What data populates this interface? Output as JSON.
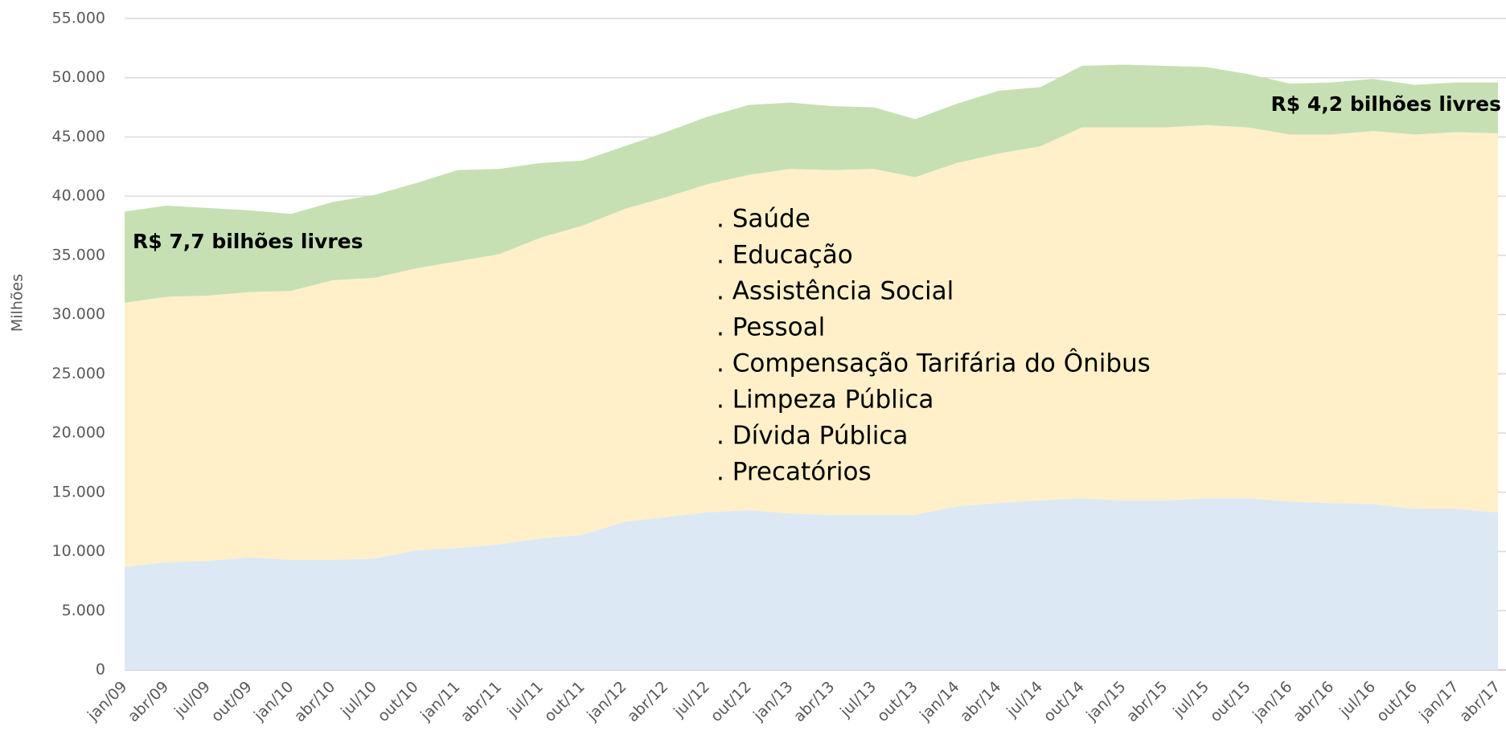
{
  "chart_data": {
    "type": "stacked_area",
    "ylabel": "Milhões",
    "categories": [
      "jan/09",
      "abr/09",
      "jul/09",
      "out/09",
      "jan/10",
      "abr/10",
      "jul/10",
      "out/10",
      "jan/11",
      "abr/11",
      "jul/11",
      "out/11",
      "jan/12",
      "abr/12",
      "jul/12",
      "out/12",
      "jan/13",
      "abr/13",
      "jul/13",
      "out/13",
      "jan/14",
      "abr/14",
      "jul/14",
      "out/14",
      "jan/15",
      "abr/15",
      "jul/15",
      "out/15",
      "jan/16",
      "abr/16",
      "jul/16",
      "out/16",
      "jan/17",
      "abr/17"
    ],
    "series": [
      {
        "color": "#dde8f5",
        "values": [
          8700,
          9100,
          9200,
          9500,
          9300,
          9300,
          9400,
          10100,
          10300,
          10600,
          11100,
          11400,
          12500,
          12900,
          13300,
          13500,
          13200,
          13100,
          13100,
          13100,
          13800,
          14100,
          14300,
          14500,
          14300,
          14300,
          14500,
          14500,
          14200,
          14100,
          14000,
          13600,
          13600,
          13300
        ]
      },
      {
        "color": "#fff0c9",
        "values": [
          22300,
          22400,
          22400,
          22400,
          22700,
          23600,
          23700,
          23800,
          24200,
          24500,
          25400,
          26100,
          26400,
          27000,
          27700,
          28300,
          29100,
          29100,
          29200,
          28500,
          29000,
          29500,
          29900,
          31300,
          31500,
          31500,
          31500,
          31300,
          31000,
          31100,
          31500,
          31600,
          31800,
          32000
        ]
      },
      {
        "color": "#c6e0b4",
        "values": [
          7700,
          7700,
          7400,
          6900,
          6500,
          6600,
          7000,
          7200,
          7700,
          7200,
          6300,
          5500,
          5300,
          5500,
          5700,
          5900,
          5600,
          5400,
          5200,
          4900,
          5000,
          5300,
          5000,
          5200,
          5300,
          5200,
          4900,
          4500,
          4300,
          4400,
          4400,
          4200,
          4200,
          4300
        ]
      }
    ],
    "ylim": [
      0,
      55000
    ],
    "yticks": [
      0,
      {
        "value": 5000,
        "label": "5.000"
      },
      {
        "value": 10000,
        "label": "10.000"
      },
      {
        "value": 15000,
        "label": "15.000"
      },
      {
        "value": 20000,
        "label": "20.000"
      },
      {
        "value": 25000,
        "label": "25.000"
      },
      {
        "value": 30000,
        "label": "30.000"
      },
      {
        "value": 35000,
        "label": "35.000"
      },
      {
        "value": 40000,
        "label": "40.000"
      },
      {
        "value": 45000,
        "label": "45.000"
      },
      {
        "value": 50000,
        "label": "50.000"
      },
      {
        "value": 55000,
        "label": "55.000"
      }
    ],
    "grid": true,
    "annotations": [
      "R$ 7,7 bilhões livres",
      "R$ 4,2 bilhões livres"
    ],
    "items": [
      ". Saúde",
      ". Educação",
      ". Assistência Social",
      ". Pessoal",
      ". Compensação Tarifária do Ônibus",
      ". Limpeza Pública",
      ". Dívida Pública",
      ". Precatórios"
    ]
  }
}
